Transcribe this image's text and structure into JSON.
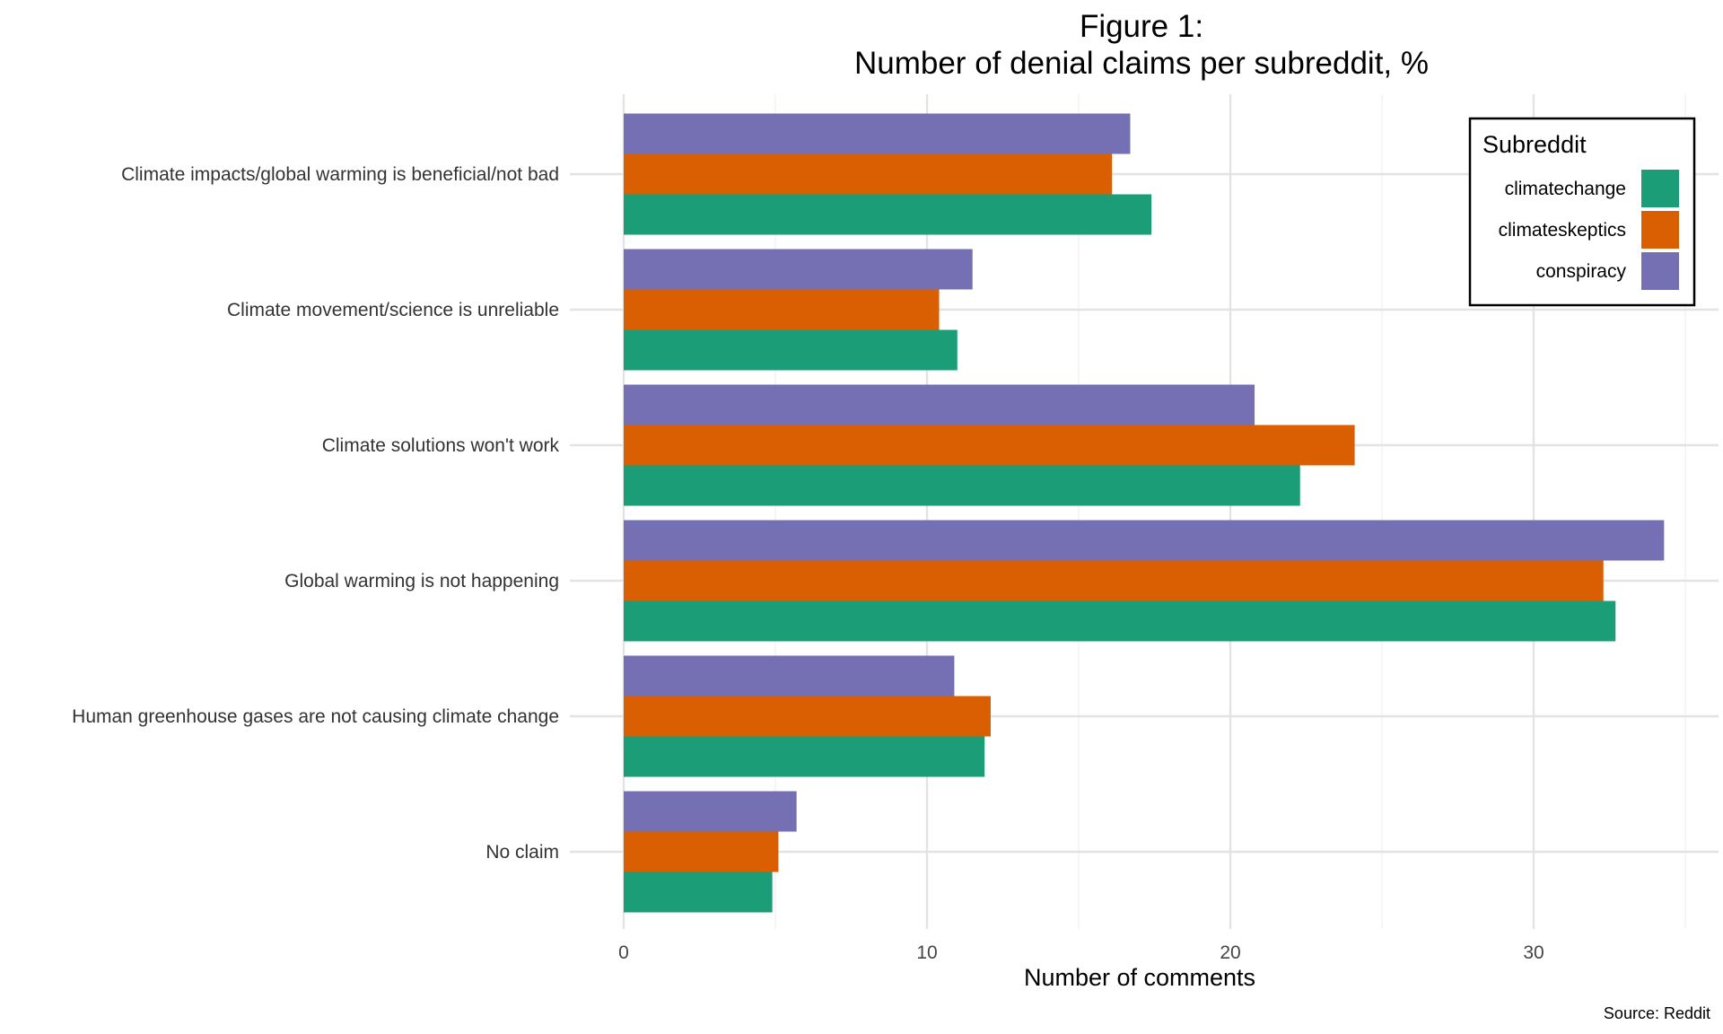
{
  "chart_data": {
    "type": "bar",
    "orientation": "horizontal",
    "title_line1": "Figure 1:",
    "title_line2": "Number of denial claims per subreddit, %",
    "xlabel": "Number of comments",
    "ylabel": "",
    "caption": "Source: Reddit",
    "xlim": [
      0,
      36
    ],
    "xticks": [
      0,
      10,
      20,
      30
    ],
    "grid": true,
    "legend": {
      "title": "Subreddit",
      "position": "top-right"
    },
    "categories": [
      "Climate impacts/global warming is beneficial/not bad",
      "Climate movement/science is unreliable",
      "Climate solutions won't work",
      "Global warming is not happening",
      "Human greenhouse gases are not causing climate change",
      "No claim"
    ],
    "series": [
      {
        "name": "climatechange",
        "color": "#1B9E77",
        "values": [
          17.4,
          11.0,
          22.3,
          32.7,
          11.9,
          4.9
        ]
      },
      {
        "name": "climateskeptics",
        "color": "#D95F02",
        "values": [
          16.1,
          10.4,
          24.1,
          32.3,
          12.1,
          5.1
        ]
      },
      {
        "name": "conspiracy",
        "color": "#7570B3",
        "values": [
          16.7,
          11.5,
          20.8,
          34.3,
          10.9,
          5.7
        ]
      }
    ]
  }
}
